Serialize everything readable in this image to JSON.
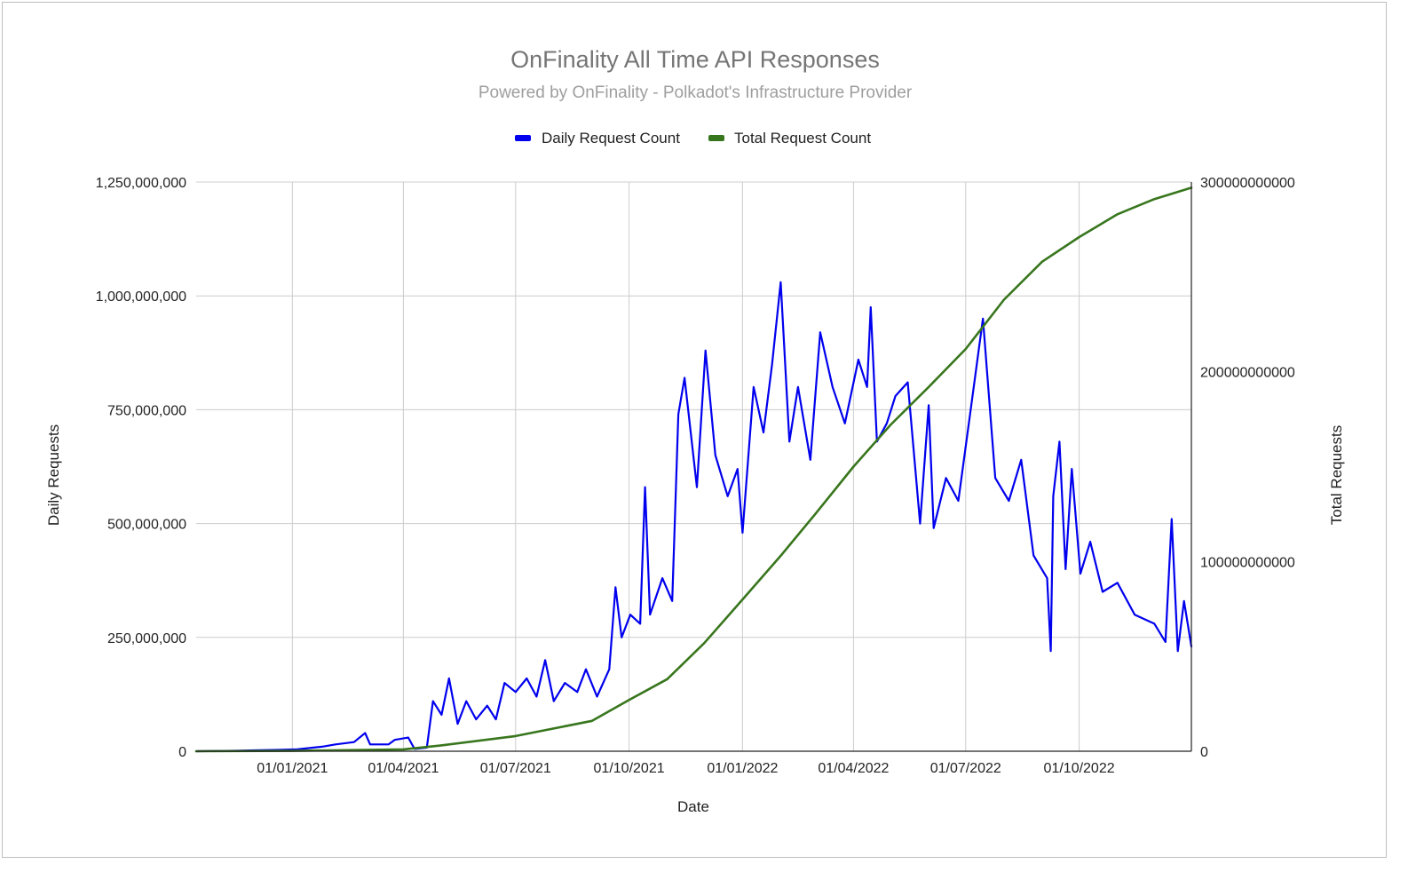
{
  "chart_data": {
    "type": "line",
    "title": "OnFinality All Time API Responses",
    "subtitle": "Powered by OnFinality - Polkadot's Infrastructure Provider",
    "xlabel": "Date",
    "ylabel_left": "Daily Requests",
    "ylabel_right": "Total Requests",
    "x_range": [
      "2020-10-15",
      "2022-12-31"
    ],
    "ylim_left": [
      0,
      1250000000
    ],
    "ylim_right": [
      0,
      300000000000
    ],
    "x_ticks": [
      "01/01/2021",
      "01/04/2021",
      "01/07/2021",
      "01/10/2021",
      "01/01/2022",
      "01/04/2022",
      "01/07/2022",
      "01/10/2022"
    ],
    "x_tick_dates": [
      "2021-01-01",
      "2021-04-01",
      "2021-07-01",
      "2021-10-01",
      "2022-01-01",
      "2022-04-01",
      "2022-07-01",
      "2022-10-01"
    ],
    "y_ticks_left": [
      "0",
      "250,000,000",
      "500,000,000",
      "750,000,000",
      "1,000,000,000",
      "1,250,000,000"
    ],
    "y_tick_values_left": [
      0,
      250000000,
      500000000,
      750000000,
      1000000000,
      1250000000
    ],
    "y_ticks_right": [
      "0",
      "100000000000",
      "200000000000",
      "300000000000"
    ],
    "y_tick_values_right": [
      0,
      100000000000,
      200000000000,
      300000000000
    ],
    "grid": true,
    "legend_position": "top",
    "series": [
      {
        "name": "Daily Request Count",
        "color": "#0000ee",
        "axis": "left",
        "points": [
          [
            "2020-10-15",
            0
          ],
          [
            "2020-11-15",
            1000000
          ],
          [
            "2020-12-01",
            2000000
          ],
          [
            "2020-12-20",
            3000000
          ],
          [
            "2021-01-05",
            4000000
          ],
          [
            "2021-01-25",
            10000000
          ],
          [
            "2021-02-05",
            15000000
          ],
          [
            "2021-02-20",
            20000000
          ],
          [
            "2021-03-01",
            40000000
          ],
          [
            "2021-03-05",
            15000000
          ],
          [
            "2021-03-20",
            15000000
          ],
          [
            "2021-03-25",
            25000000
          ],
          [
            "2021-04-05",
            30000000
          ],
          [
            "2021-04-10",
            5000000
          ],
          [
            "2021-04-20",
            8000000
          ],
          [
            "2021-04-25",
            110000000
          ],
          [
            "2021-05-02",
            80000000
          ],
          [
            "2021-05-08",
            160000000
          ],
          [
            "2021-05-15",
            60000000
          ],
          [
            "2021-05-22",
            110000000
          ],
          [
            "2021-05-30",
            70000000
          ],
          [
            "2021-06-08",
            100000000
          ],
          [
            "2021-06-15",
            70000000
          ],
          [
            "2021-06-22",
            150000000
          ],
          [
            "2021-07-01",
            130000000
          ],
          [
            "2021-07-10",
            160000000
          ],
          [
            "2021-07-18",
            120000000
          ],
          [
            "2021-07-25",
            200000000
          ],
          [
            "2021-08-01",
            110000000
          ],
          [
            "2021-08-10",
            150000000
          ],
          [
            "2021-08-20",
            130000000
          ],
          [
            "2021-08-27",
            180000000
          ],
          [
            "2021-09-05",
            120000000
          ],
          [
            "2021-09-15",
            180000000
          ],
          [
            "2021-09-20",
            360000000
          ],
          [
            "2021-09-25",
            250000000
          ],
          [
            "2021-10-02",
            300000000
          ],
          [
            "2021-10-10",
            280000000
          ],
          [
            "2021-10-14",
            580000000
          ],
          [
            "2021-10-18",
            300000000
          ],
          [
            "2021-10-28",
            380000000
          ],
          [
            "2021-11-05",
            330000000
          ],
          [
            "2021-11-10",
            740000000
          ],
          [
            "2021-11-15",
            820000000
          ],
          [
            "2021-11-25",
            580000000
          ],
          [
            "2021-12-02",
            880000000
          ],
          [
            "2021-12-10",
            650000000
          ],
          [
            "2021-12-20",
            560000000
          ],
          [
            "2021-12-28",
            620000000
          ],
          [
            "2022-01-01",
            480000000
          ],
          [
            "2022-01-10",
            800000000
          ],
          [
            "2022-01-18",
            700000000
          ],
          [
            "2022-01-25",
            850000000
          ],
          [
            "2022-02-01",
            1030000000
          ],
          [
            "2022-02-08",
            680000000
          ],
          [
            "2022-02-15",
            800000000
          ],
          [
            "2022-02-25",
            640000000
          ],
          [
            "2022-03-05",
            920000000
          ],
          [
            "2022-03-15",
            800000000
          ],
          [
            "2022-03-25",
            720000000
          ],
          [
            "2022-04-05",
            860000000
          ],
          [
            "2022-04-12",
            800000000
          ],
          [
            "2022-04-15",
            975000000
          ],
          [
            "2022-04-20",
            680000000
          ],
          [
            "2022-04-28",
            720000000
          ],
          [
            "2022-05-05",
            780000000
          ],
          [
            "2022-05-15",
            810000000
          ],
          [
            "2022-05-25",
            500000000
          ],
          [
            "2022-06-01",
            760000000
          ],
          [
            "2022-06-05",
            490000000
          ],
          [
            "2022-06-15",
            600000000
          ],
          [
            "2022-06-25",
            550000000
          ],
          [
            "2022-07-05",
            750000000
          ],
          [
            "2022-07-15",
            950000000
          ],
          [
            "2022-07-25",
            600000000
          ],
          [
            "2022-08-05",
            550000000
          ],
          [
            "2022-08-15",
            640000000
          ],
          [
            "2022-08-25",
            430000000
          ],
          [
            "2022-09-05",
            380000000
          ],
          [
            "2022-09-08",
            220000000
          ],
          [
            "2022-09-10",
            560000000
          ],
          [
            "2022-09-15",
            680000000
          ],
          [
            "2022-09-20",
            400000000
          ],
          [
            "2022-09-25",
            620000000
          ],
          [
            "2022-10-02",
            390000000
          ],
          [
            "2022-10-10",
            460000000
          ],
          [
            "2022-10-20",
            350000000
          ],
          [
            "2022-11-01",
            370000000
          ],
          [
            "2022-11-15",
            300000000
          ],
          [
            "2022-12-01",
            280000000
          ],
          [
            "2022-12-10",
            240000000
          ],
          [
            "2022-12-15",
            510000000
          ],
          [
            "2022-12-20",
            220000000
          ],
          [
            "2022-12-25",
            330000000
          ],
          [
            "2022-12-31",
            230000000
          ]
        ]
      },
      {
        "name": "Total Request Count",
        "color": "#38761d",
        "axis": "right",
        "points": [
          [
            "2020-10-15",
            0
          ],
          [
            "2021-01-01",
            200000000
          ],
          [
            "2021-04-01",
            1000000000
          ],
          [
            "2021-05-01",
            3000000000
          ],
          [
            "2021-07-01",
            8000000000
          ],
          [
            "2021-09-01",
            16000000000
          ],
          [
            "2021-10-01",
            27000000000
          ],
          [
            "2021-11-01",
            38000000000
          ],
          [
            "2021-12-01",
            57000000000
          ],
          [
            "2022-01-01",
            80000000000
          ],
          [
            "2022-02-01",
            103000000000
          ],
          [
            "2022-03-01",
            125000000000
          ],
          [
            "2022-04-01",
            150000000000
          ],
          [
            "2022-05-01",
            172000000000
          ],
          [
            "2022-06-01",
            192000000000
          ],
          [
            "2022-07-01",
            212000000000
          ],
          [
            "2022-08-01",
            238000000000
          ],
          [
            "2022-09-01",
            258000000000
          ],
          [
            "2022-10-01",
            271000000000
          ],
          [
            "2022-11-01",
            283000000000
          ],
          [
            "2022-12-01",
            291000000000
          ],
          [
            "2022-12-31",
            297000000000
          ]
        ]
      }
    ]
  }
}
